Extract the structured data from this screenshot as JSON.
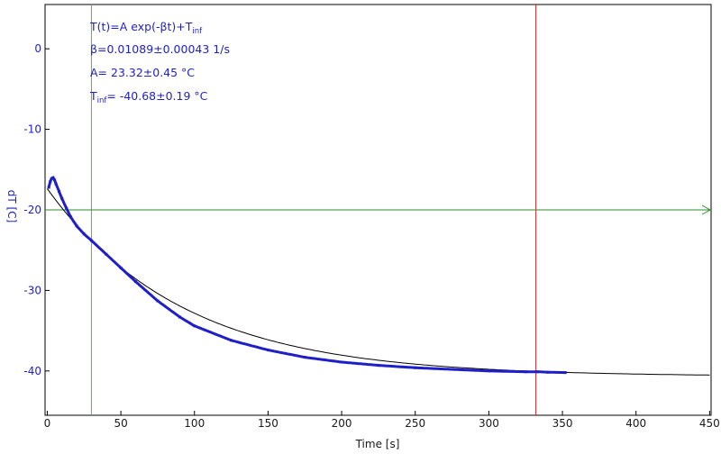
{
  "chart_data": {
    "type": "line",
    "xlabel": "Time [s]",
    "ylabel": "dT [C]",
    "xlim": [
      -1.5,
      451
    ],
    "ylim": [
      -45.5,
      5.5
    ],
    "x_ticks": [
      0,
      50,
      100,
      150,
      200,
      250,
      300,
      350,
      400,
      450
    ],
    "y_ticks": [
      0,
      -10,
      -20,
      -30,
      -40
    ],
    "x_tick_labels": [
      "0",
      "50",
      "100",
      "150",
      "200",
      "250",
      "300",
      "350",
      "400",
      "450"
    ],
    "y_tick_labels": [
      "0",
      "-10",
      "-20",
      "-30",
      "-40"
    ],
    "grid": false,
    "fit": {
      "equation": "T(t)=A exp(-βt)+T",
      "equation_sub": "inf",
      "beta": "β=0.01089±0.00043 1/s",
      "A": "A= 23.32±0.45 °C",
      "tinf_prefix": "T",
      "tinf_sub": "inf",
      "tinf_value": "= -40.68±0.19 °C",
      "params": {
        "A": 23.32,
        "beta": 0.01089,
        "T_inf": -40.68
      }
    },
    "series": [
      {
        "kind": "measured",
        "color": "#1f1fc8",
        "x": [
          1,
          2,
          3,
          4,
          5,
          6,
          8,
          10,
          13,
          16,
          20,
          25,
          30,
          40,
          50,
          60,
          75,
          90,
          100,
          125,
          150,
          175,
          200,
          225,
          250,
          275,
          300,
          325,
          333,
          340,
          352
        ],
        "y": [
          -17.2,
          -16.5,
          -16.1,
          -16.0,
          -16.3,
          -16.8,
          -17.7,
          -18.6,
          -19.8,
          -20.9,
          -22.0,
          -23.0,
          -23.8,
          -25.5,
          -27.2,
          -28.9,
          -31.3,
          -33.3,
          -34.4,
          -36.2,
          -37.4,
          -38.3,
          -38.9,
          -39.3,
          -39.6,
          -39.8,
          -40.0,
          -40.1,
          -40.1,
          -40.15,
          -40.2
        ]
      },
      {
        "kind": "fit",
        "color": "#000000",
        "x_range": [
          0,
          450
        ]
      }
    ],
    "cursors": [
      {
        "orientation": "vertical",
        "x": 30,
        "color": "#33cc33"
      },
      {
        "orientation": "vertical",
        "x": 332,
        "color": "#c42020"
      },
      {
        "orientation": "horizontal",
        "y": -20,
        "color": "#2e8b2e",
        "arrow": true
      }
    ]
  }
}
